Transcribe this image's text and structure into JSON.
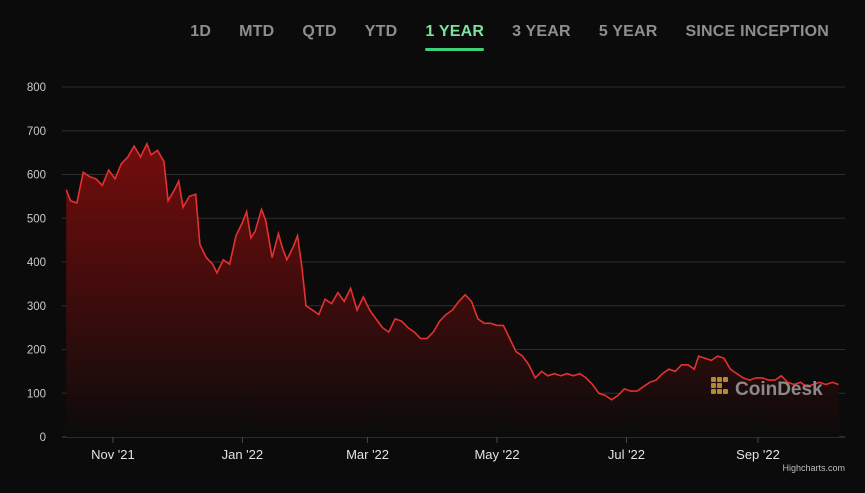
{
  "tabs": [
    {
      "label": "1D",
      "active": false
    },
    {
      "label": "MTD",
      "active": false
    },
    {
      "label": "QTD",
      "active": false
    },
    {
      "label": "YTD",
      "active": false
    },
    {
      "label": "1 YEAR",
      "active": true
    },
    {
      "label": "3 YEAR",
      "active": false
    },
    {
      "label": "5 YEAR",
      "active": false
    },
    {
      "label": "SINCE INCEPTION",
      "active": false
    }
  ],
  "colors": {
    "line": "#e53030",
    "fill_top": "#7a0d0d",
    "grid": "#2e2e2e",
    "active_tab": "#3fd07b"
  },
  "watermark": {
    "text": "CoinDesk",
    "icon": "coindesk-logo-icon"
  },
  "credits": "Highcharts.com",
  "chart_data": {
    "type": "area",
    "title": "",
    "xlabel": "",
    "ylabel": "",
    "ylim": [
      0,
      800
    ],
    "yticks": [
      0,
      100,
      200,
      300,
      400,
      500,
      600,
      700,
      800
    ],
    "xlim": [
      "2021-10-08",
      "2022-10-12"
    ],
    "xticks": [
      {
        "date": "2021-11-01",
        "label": "Nov '21"
      },
      {
        "date": "2022-01-01",
        "label": "Jan '22"
      },
      {
        "date": "2022-03-01",
        "label": "Mar '22"
      },
      {
        "date": "2022-05-01",
        "label": "May '22"
      },
      {
        "date": "2022-07-01",
        "label": "Jul '22"
      },
      {
        "date": "2022-09-01",
        "label": "Sep '22"
      }
    ],
    "grid": true,
    "legend": "none",
    "series": [
      {
        "points": [
          [
            "2021-10-10",
            565
          ],
          [
            "2021-10-12",
            540
          ],
          [
            "2021-10-15",
            535
          ],
          [
            "2021-10-18",
            605
          ],
          [
            "2021-10-21",
            595
          ],
          [
            "2021-10-24",
            590
          ],
          [
            "2021-10-27",
            575
          ],
          [
            "2021-10-30",
            610
          ],
          [
            "2021-11-02",
            590
          ],
          [
            "2021-11-05",
            625
          ],
          [
            "2021-11-08",
            640
          ],
          [
            "2021-11-11",
            665
          ],
          [
            "2021-11-14",
            640
          ],
          [
            "2021-11-17",
            670
          ],
          [
            "2021-11-19",
            645
          ],
          [
            "2021-11-22",
            655
          ],
          [
            "2021-11-25",
            630
          ],
          [
            "2021-11-27",
            540
          ],
          [
            "2021-11-30",
            565
          ],
          [
            "2021-12-02",
            585
          ],
          [
            "2021-12-04",
            525
          ],
          [
            "2021-12-07",
            550
          ],
          [
            "2021-12-10",
            555
          ],
          [
            "2021-12-12",
            440
          ],
          [
            "2021-12-15",
            410
          ],
          [
            "2021-12-18",
            395
          ],
          [
            "2021-12-20",
            375
          ],
          [
            "2021-12-23",
            405
          ],
          [
            "2021-12-26",
            395
          ],
          [
            "2021-12-29",
            460
          ],
          [
            "2022-01-01",
            490
          ],
          [
            "2022-01-03",
            515
          ],
          [
            "2022-01-05",
            455
          ],
          [
            "2022-01-07",
            470
          ],
          [
            "2022-01-10",
            520
          ],
          [
            "2022-01-12",
            495
          ],
          [
            "2022-01-15",
            410
          ],
          [
            "2022-01-18",
            465
          ],
          [
            "2022-01-20",
            430
          ],
          [
            "2022-01-22",
            405
          ],
          [
            "2022-01-25",
            435
          ],
          [
            "2022-01-27",
            460
          ],
          [
            "2022-01-29",
            390
          ],
          [
            "2022-01-31",
            300
          ],
          [
            "2022-02-03",
            290
          ],
          [
            "2022-02-06",
            280
          ],
          [
            "2022-02-09",
            315
          ],
          [
            "2022-02-12",
            305
          ],
          [
            "2022-02-15",
            330
          ],
          [
            "2022-02-18",
            310
          ],
          [
            "2022-02-21",
            340
          ],
          [
            "2022-02-24",
            290
          ],
          [
            "2022-02-27",
            320
          ],
          [
            "2022-03-02",
            290
          ],
          [
            "2022-03-05",
            270
          ],
          [
            "2022-03-08",
            250
          ],
          [
            "2022-03-11",
            240
          ],
          [
            "2022-03-14",
            270
          ],
          [
            "2022-03-17",
            265
          ],
          [
            "2022-03-20",
            250
          ],
          [
            "2022-03-23",
            240
          ],
          [
            "2022-03-26",
            225
          ],
          [
            "2022-03-29",
            225
          ],
          [
            "2022-04-01",
            240
          ],
          [
            "2022-04-04",
            265
          ],
          [
            "2022-04-07",
            280
          ],
          [
            "2022-04-10",
            290
          ],
          [
            "2022-04-13",
            310
          ],
          [
            "2022-04-16",
            325
          ],
          [
            "2022-04-19",
            310
          ],
          [
            "2022-04-22",
            270
          ],
          [
            "2022-04-25",
            260
          ],
          [
            "2022-04-28",
            260
          ],
          [
            "2022-05-01",
            255
          ],
          [
            "2022-05-04",
            255
          ],
          [
            "2022-05-07",
            225
          ],
          [
            "2022-05-10",
            195
          ],
          [
            "2022-05-13",
            185
          ],
          [
            "2022-05-16",
            165
          ],
          [
            "2022-05-19",
            135
          ],
          [
            "2022-05-22",
            150
          ],
          [
            "2022-05-25",
            140
          ],
          [
            "2022-05-28",
            145
          ],
          [
            "2022-05-31",
            140
          ],
          [
            "2022-06-03",
            145
          ],
          [
            "2022-06-06",
            140
          ],
          [
            "2022-06-09",
            145
          ],
          [
            "2022-06-12",
            135
          ],
          [
            "2022-06-15",
            120
          ],
          [
            "2022-06-18",
            100
          ],
          [
            "2022-06-21",
            95
          ],
          [
            "2022-06-24",
            85
          ],
          [
            "2022-06-27",
            95
          ],
          [
            "2022-06-30",
            110
          ],
          [
            "2022-07-03",
            105
          ],
          [
            "2022-07-06",
            105
          ],
          [
            "2022-07-09",
            115
          ],
          [
            "2022-07-12",
            125
          ],
          [
            "2022-07-15",
            130
          ],
          [
            "2022-07-18",
            145
          ],
          [
            "2022-07-21",
            155
          ],
          [
            "2022-07-24",
            150
          ],
          [
            "2022-07-27",
            165
          ],
          [
            "2022-07-30",
            165
          ],
          [
            "2022-08-02",
            155
          ],
          [
            "2022-08-04",
            185
          ],
          [
            "2022-08-07",
            180
          ],
          [
            "2022-08-10",
            175
          ],
          [
            "2022-08-13",
            185
          ],
          [
            "2022-08-16",
            180
          ],
          [
            "2022-08-19",
            155
          ],
          [
            "2022-08-22",
            145
          ],
          [
            "2022-08-25",
            135
          ],
          [
            "2022-08-28",
            130
          ],
          [
            "2022-08-31",
            135
          ],
          [
            "2022-09-03",
            135
          ],
          [
            "2022-09-06",
            130
          ],
          [
            "2022-09-09",
            130
          ],
          [
            "2022-09-12",
            140
          ],
          [
            "2022-09-15",
            125
          ],
          [
            "2022-09-18",
            120
          ],
          [
            "2022-09-21",
            125
          ],
          [
            "2022-09-24",
            115
          ],
          [
            "2022-09-27",
            120
          ],
          [
            "2022-09-30",
            125
          ],
          [
            "2022-10-03",
            120
          ],
          [
            "2022-10-06",
            125
          ],
          [
            "2022-10-09",
            120
          ]
        ]
      }
    ]
  }
}
